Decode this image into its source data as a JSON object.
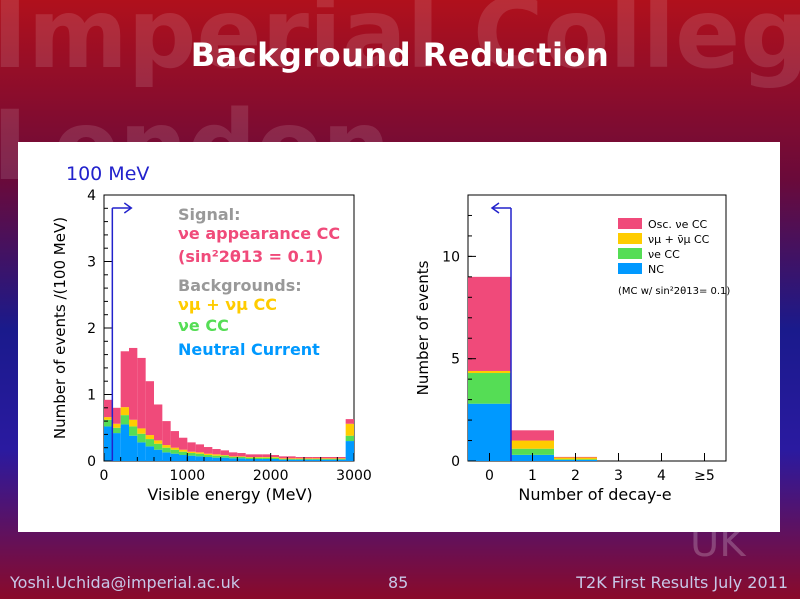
{
  "slide": {
    "title": "Background Reduction",
    "watermark_lines": [
      "Imperial College",
      "London"
    ],
    "watermark_corner": "UK"
  },
  "footer": {
    "author": "Yoshi.Uchida@imperial.ac.uk",
    "page": "85",
    "event": "T2K First Results July 2011"
  },
  "colors": {
    "signal": "#f04a7a",
    "numu_cc": "#ffcc00",
    "nue_cc": "#55dd55",
    "nc": "#0099ff",
    "cut_arrow": "#2222cc"
  },
  "chart_data": [
    {
      "type": "bar",
      "stacked": true,
      "bin_label": "100 MeV",
      "xlabel": "Visible energy (MeV)",
      "ylabel": "Number of events /(100 MeV)",
      "xlim": [
        0,
        3000
      ],
      "ylim": [
        0,
        4
      ],
      "xticks": [
        "0",
        "1000",
        "2000",
        "3000"
      ],
      "yticks": [
        "0",
        "1",
        "2",
        "3",
        "4"
      ],
      "cut_value": 100,
      "annotations": {
        "signal_heading": "Signal:",
        "signal_process": "νe appearance CC",
        "signal_condition": "(sin²2θ13 = 0.1)",
        "bg_heading": "Backgrounds:",
        "bg_numu": "νμ + νμ CC",
        "bg_nue": "νe CC",
        "bg_nc": "Neutral Current"
      },
      "x": [
        50,
        150,
        250,
        350,
        450,
        550,
        650,
        750,
        850,
        950,
        1050,
        1150,
        1250,
        1350,
        1450,
        1550,
        1650,
        1750,
        1850,
        1950,
        2050,
        2150,
        2250,
        2350,
        2450,
        2550,
        2650,
        2750,
        2850,
        2950
      ],
      "series": [
        {
          "name": "Neutral Current",
          "color_key": "nc",
          "values": [
            0.52,
            0.42,
            0.55,
            0.38,
            0.28,
            0.22,
            0.17,
            0.13,
            0.11,
            0.09,
            0.08,
            0.07,
            0.06,
            0.05,
            0.05,
            0.04,
            0.04,
            0.03,
            0.03,
            0.03,
            0.03,
            0.02,
            0.02,
            0.02,
            0.02,
            0.02,
            0.02,
            0.02,
            0.02,
            0.3
          ]
        },
        {
          "name": "νe CC",
          "color_key": "nue_cc",
          "values": [
            0.1,
            0.08,
            0.14,
            0.14,
            0.13,
            0.11,
            0.09,
            0.07,
            0.06,
            0.05,
            0.04,
            0.04,
            0.03,
            0.03,
            0.03,
            0.02,
            0.02,
            0.02,
            0.02,
            0.02,
            0.02,
            0.01,
            0.01,
            0.01,
            0.01,
            0.01,
            0.01,
            0.01,
            0.01,
            0.08
          ]
        },
        {
          "name": "νμ + νμ CC",
          "color_key": "numu_cc",
          "values": [
            0.04,
            0.06,
            0.12,
            0.1,
            0.08,
            0.06,
            0.05,
            0.04,
            0.03,
            0.03,
            0.02,
            0.02,
            0.02,
            0.02,
            0.01,
            0.01,
            0.01,
            0.01,
            0.01,
            0.01,
            0.01,
            0.01,
            0.01,
            0.01,
            0.01,
            0.01,
            0.01,
            0.01,
            0.01,
            0.18
          ]
        },
        {
          "name": "νe appearance CC",
          "color_key": "signal",
          "values": [
            0.26,
            0.24,
            0.84,
            1.08,
            1.06,
            0.81,
            0.54,
            0.36,
            0.25,
            0.18,
            0.14,
            0.12,
            0.1,
            0.08,
            0.07,
            0.06,
            0.05,
            0.04,
            0.04,
            0.04,
            0.03,
            0.03,
            0.03,
            0.02,
            0.02,
            0.02,
            0.02,
            0.02,
            0.02,
            0.07
          ]
        }
      ]
    },
    {
      "type": "bar",
      "stacked": true,
      "xlabel": "Number of decay-e",
      "ylabel": "Number of events",
      "categories": [
        "0",
        "1",
        "2",
        "3",
        "4",
        "≥5"
      ],
      "ylim": [
        0,
        13
      ],
      "yticks": [
        "0",
        "5",
        "10"
      ],
      "cut_value": 0,
      "legend": {
        "position": "top-right",
        "entries": [
          {
            "label": "Osc. νe CC",
            "color_key": "signal"
          },
          {
            "label": "νμ + ν̄μ CC",
            "color_key": "numu_cc"
          },
          {
            "label": "νe CC",
            "color_key": "nue_cc"
          },
          {
            "label": "NC",
            "color_key": "nc"
          }
        ],
        "note": "(MC w/ sin²2θ13= 0.1)"
      },
      "series": [
        {
          "name": "NC",
          "color_key": "nc",
          "values": [
            2.8,
            0.3,
            0.05,
            0,
            0,
            0
          ]
        },
        {
          "name": "νe CC",
          "color_key": "nue_cc",
          "values": [
            1.5,
            0.3,
            0.04,
            0,
            0,
            0
          ]
        },
        {
          "name": "νμ + ν̄μ CC",
          "color_key": "numu_cc",
          "values": [
            0.1,
            0.4,
            0.08,
            0,
            0,
            0
          ]
        },
        {
          "name": "Osc. νe CC",
          "color_key": "signal",
          "values": [
            4.6,
            0.5,
            0.03,
            0,
            0,
            0
          ]
        }
      ]
    }
  ]
}
